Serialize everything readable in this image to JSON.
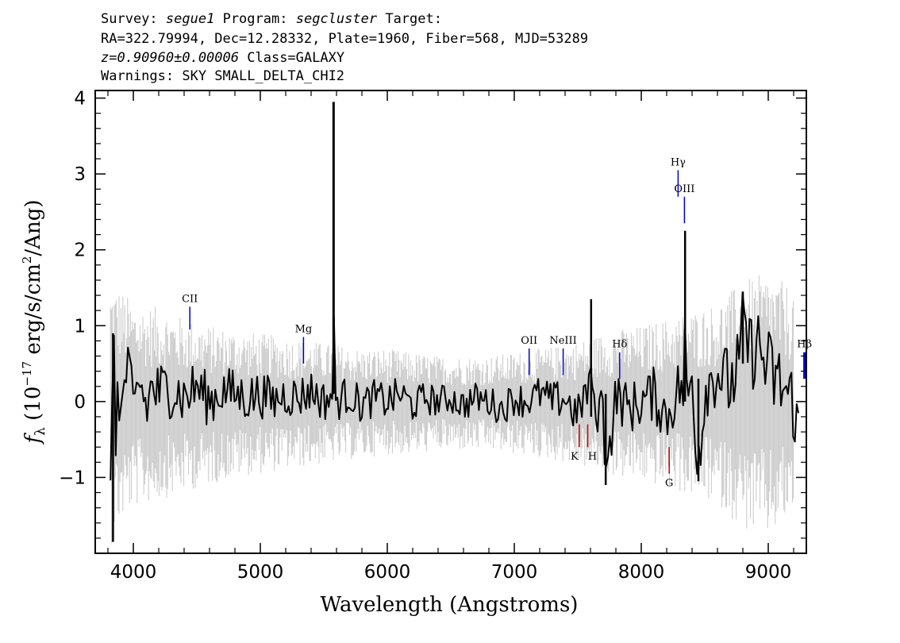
{
  "header": {
    "line1_survey_label": "Survey:",
    "line1_survey_value": "segue1",
    "line1_program_label": "Program:",
    "line1_program_value": "segcluster",
    "line1_target_label": "Target:",
    "line2": "RA=322.79994, Dec=12.28332, Plate=1960, Fiber=568, MJD=53289",
    "line3_redshift": "z=0.90960±0.00006",
    "line3_class": "Class=GALAXY",
    "line4": "Warnings: SKY SMALL_DELTA_CHI2"
  },
  "chart_data": {
    "type": "line",
    "title": "",
    "xlabel": "Wavelength (Angstroms)",
    "ylabel_symbol": "f",
    "ylabel_subscript": "λ",
    "ylabel_text": "(10",
    "ylabel_exponent": "−17",
    "ylabel_units": "erg/s/cm",
    "ylabel_units_exponent": "2",
    "ylabel_units_end": "/Ang)",
    "xlim": [
      3700,
      9300
    ],
    "ylim": [
      -2.0,
      4.1
    ],
    "x_ticks": [
      4000,
      5000,
      6000,
      7000,
      8000,
      9000
    ],
    "x_tick_labels": [
      "4000",
      "5000",
      "6000",
      "7000",
      "8000",
      "9000"
    ],
    "y_ticks": [
      -1,
      0,
      1,
      2,
      3,
      4
    ],
    "y_tick_labels": [
      "−1",
      "0",
      "1",
      "2",
      "3",
      "4"
    ],
    "grid": false,
    "series": [
      {
        "role": "error-band",
        "color": "#c8c8c8",
        "x": [
          3820,
          3900,
          4000,
          4200,
          4400,
          4600,
          4800,
          5000,
          5200,
          5400,
          5600,
          5800,
          6000,
          6200,
          6400,
          6600,
          6800,
          7000,
          7200,
          7400,
          7600,
          7800,
          8000,
          8200,
          8400,
          8600,
          8800,
          9000,
          9200
        ],
        "y_upper": [
          1.6,
          1.5,
          1.3,
          1.25,
          1.1,
          1.0,
          0.95,
          0.9,
          0.85,
          0.8,
          0.75,
          0.7,
          0.7,
          0.65,
          0.6,
          0.6,
          0.6,
          0.65,
          0.7,
          0.75,
          0.85,
          0.95,
          1.0,
          1.1,
          1.2,
          1.3,
          1.6,
          1.7,
          1.5
        ],
        "y_lower": [
          -1.9,
          -1.6,
          -1.4,
          -1.3,
          -1.2,
          -1.1,
          -1.0,
          -0.95,
          -0.9,
          -0.85,
          -0.8,
          -0.75,
          -0.7,
          -0.7,
          -0.65,
          -0.65,
          -0.65,
          -0.7,
          -0.75,
          -0.8,
          -0.9,
          -1.0,
          -1.05,
          -1.15,
          -1.25,
          -1.35,
          -1.7,
          -1.8,
          -1.5
        ]
      },
      {
        "role": "flux",
        "color": "#000000",
        "x": [
          3820,
          3840,
          3860,
          3880,
          3900,
          3950,
          4000,
          4050,
          4100,
          4150,
          4200,
          4300,
          4400,
          4500,
          4600,
          4700,
          4800,
          4900,
          5000,
          5100,
          5200,
          5300,
          5400,
          5500,
          5570,
          5577,
          5584,
          5600,
          5700,
          5800,
          5900,
          6000,
          6100,
          6200,
          6300,
          6400,
          6500,
          6600,
          6700,
          6800,
          6900,
          7000,
          7100,
          7200,
          7300,
          7400,
          7500,
          7550,
          7600,
          7605,
          7620,
          7700,
          7720,
          7800,
          7900,
          8000,
          8100,
          8200,
          8300,
          8340,
          8345,
          8355,
          8400,
          8450,
          8500,
          8600,
          8700,
          8780,
          8800,
          8850,
          8900,
          9000,
          9100,
          9200,
          9240
        ],
        "y": [
          -1.8,
          0.9,
          -0.6,
          0.6,
          -0.3,
          0.5,
          -0.2,
          0.3,
          -0.1,
          0.2,
          0.1,
          0.2,
          0.05,
          0.2,
          0.0,
          0.15,
          0.1,
          0.05,
          0.1,
          0.0,
          0.1,
          0.05,
          0.15,
          0.0,
          0.1,
          3.95,
          0.1,
          0.0,
          0.1,
          -0.05,
          0.05,
          0.0,
          0.1,
          -0.05,
          0.05,
          0.0,
          0.05,
          -0.05,
          0.05,
          0.0,
          -0.1,
          0.05,
          0.0,
          0.1,
          0.0,
          0.05,
          -0.2,
          0.1,
          0.1,
          1.35,
          -0.2,
          0.0,
          -1.1,
          0.1,
          -0.1,
          0.0,
          0.1,
          -0.2,
          0.2,
          0.1,
          2.25,
          0.0,
          0.3,
          -1.05,
          0.2,
          0.4,
          0.2,
          0.5,
          1.45,
          0.6,
          0.8,
          0.4,
          0.2,
          0.0,
          -0.5
        ]
      }
    ],
    "spike_features": [
      {
        "x": 3840,
        "y_top": 0.9,
        "y_bottom": -1.85
      },
      {
        "x": 5577,
        "y_top": 3.95,
        "y_bottom": 0.1
      },
      {
        "x": 7605,
        "y_top": 1.35,
        "y_bottom": -0.2
      },
      {
        "x": 7720,
        "y_top": 0.1,
        "y_bottom": -1.1
      },
      {
        "x": 8345,
        "y_top": 2.25,
        "y_bottom": 0.0
      },
      {
        "x": 8450,
        "y_top": 0.3,
        "y_bottom": -1.05
      },
      {
        "x": 8800,
        "y_top": 1.45,
        "y_bottom": 0.5
      }
    ],
    "emission_lines": [
      {
        "name": "CII",
        "x": 4445,
        "y_bottom": 0.95,
        "y_top": 1.25,
        "color": "#0000cc"
      },
      {
        "name": "Mg",
        "x": 5340,
        "y_bottom": 0.5,
        "y_top": 0.85,
        "color": "#0000cc"
      },
      {
        "name": "OII",
        "x": 7117,
        "y_bottom": 0.35,
        "y_top": 0.7,
        "color": "#0000cc"
      },
      {
        "name": "NeIII",
        "x": 7385,
        "y_bottom": 0.35,
        "y_top": 0.7,
        "color": "#0000cc"
      },
      {
        "name": "Hδ",
        "x": 7830,
        "y_bottom": 0.3,
        "y_top": 0.65,
        "color": "#0000cc"
      },
      {
        "name": "Hγ",
        "x": 8290,
        "y_bottom": 2.7,
        "y_top": 3.05,
        "color": "#0000cc"
      },
      {
        "name": "OIII",
        "x": 8340,
        "y_bottom": 2.35,
        "y_top": 2.7,
        "color": "#0000cc"
      },
      {
        "name": "Hβ",
        "x": 9285,
        "y_bottom": 0.3,
        "y_top": 0.65,
        "color": "#0000cc"
      }
    ],
    "absorption_lines": [
      {
        "name": "K",
        "x": 7512,
        "y_top": -0.3,
        "y_bottom": -0.6,
        "color": "#cc0000"
      },
      {
        "name": "H",
        "x": 7578,
        "y_top": -0.3,
        "y_bottom": -0.6,
        "color": "#cc0000"
      },
      {
        "name": "G",
        "x": 8220,
        "y_top": -0.6,
        "y_bottom": -0.95,
        "color": "#cc0000"
      }
    ]
  }
}
